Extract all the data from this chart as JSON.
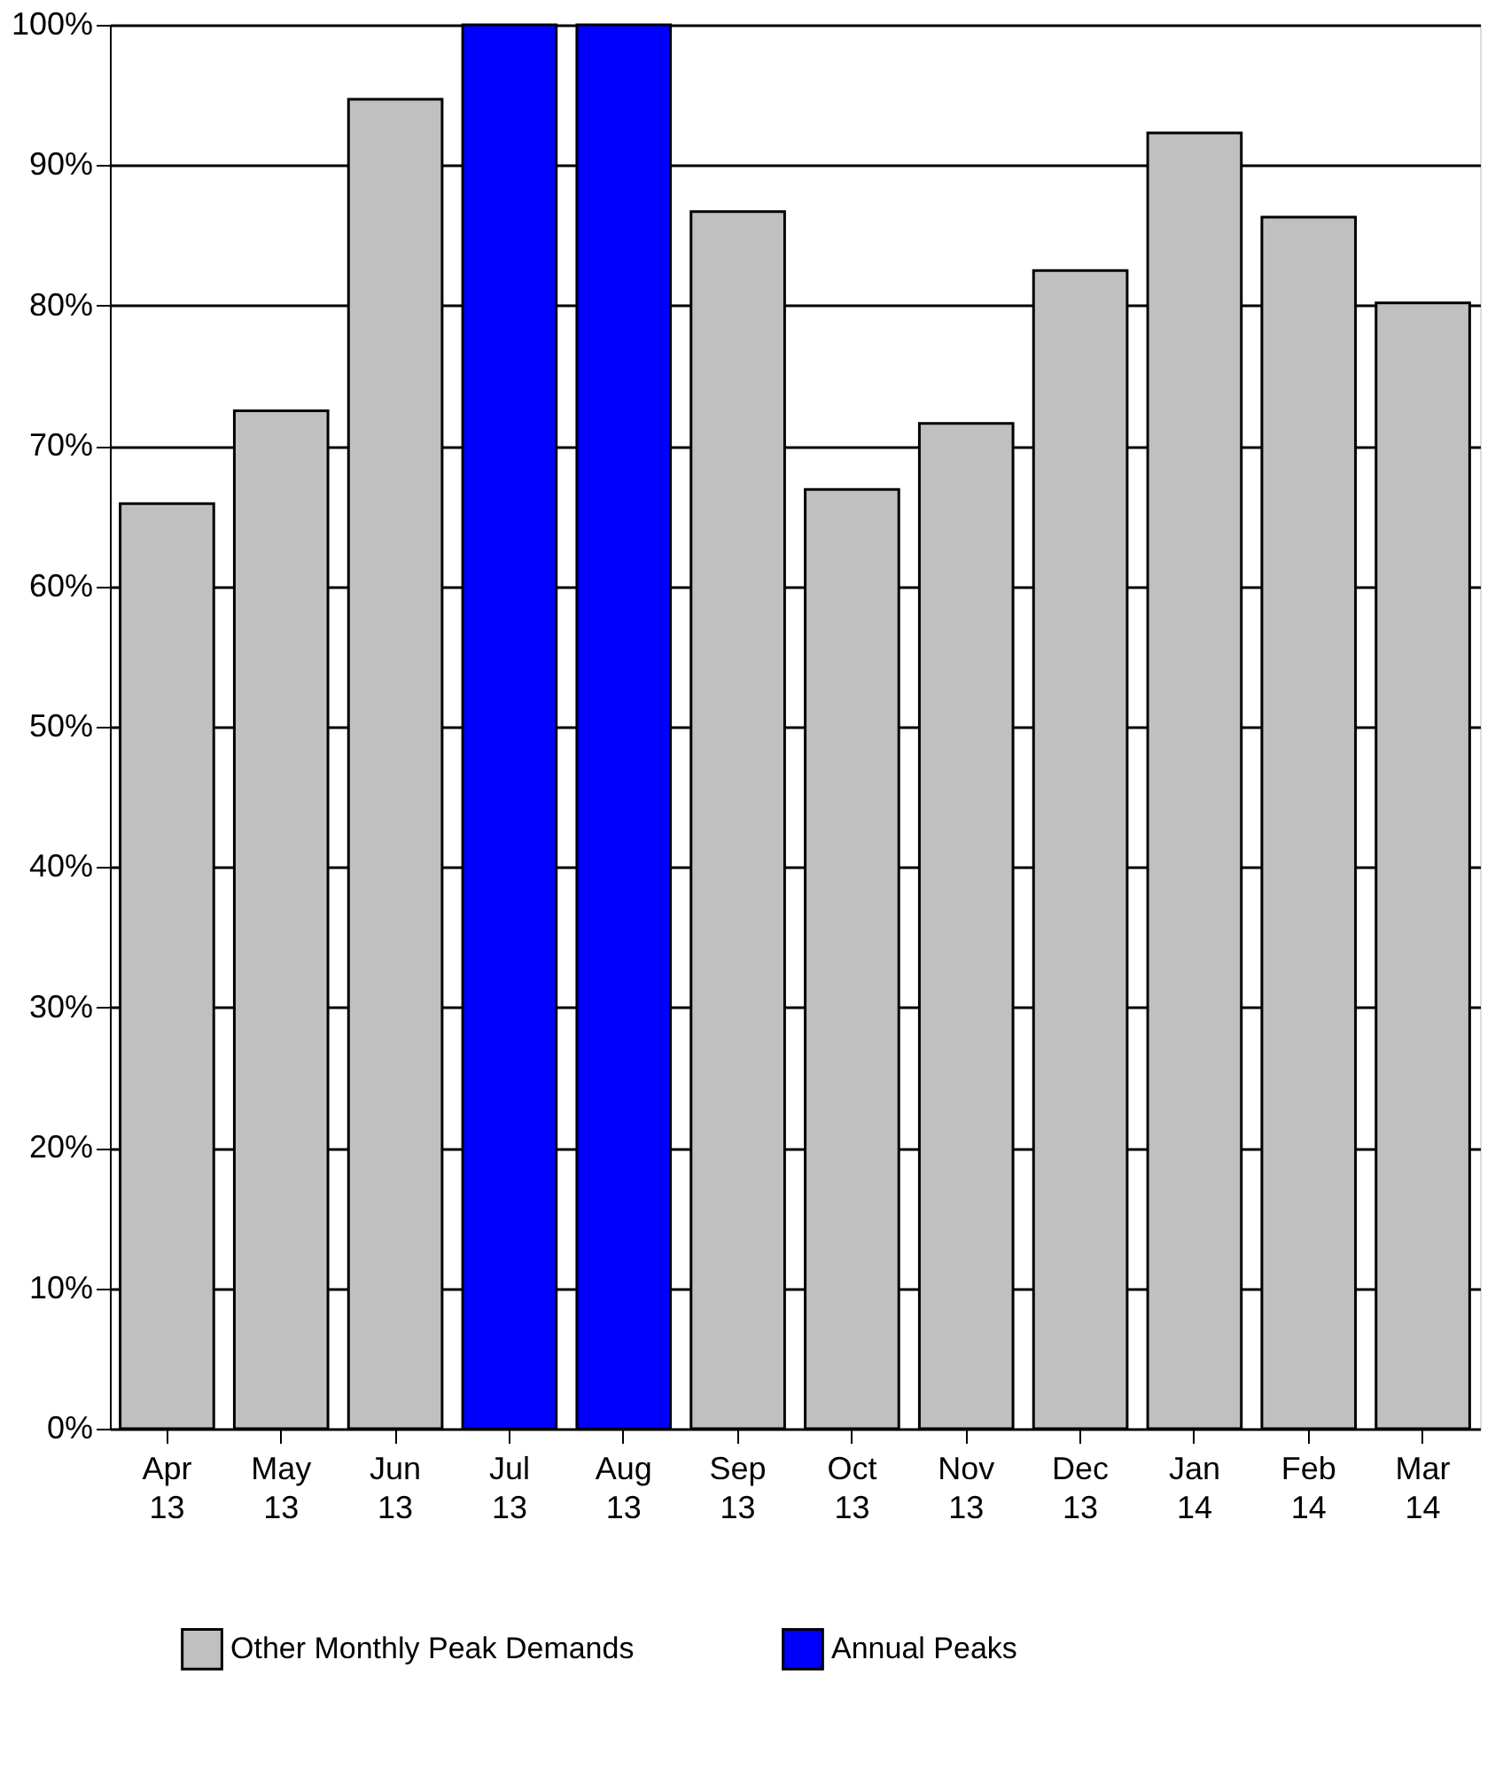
{
  "chart_data": {
    "type": "bar",
    "categories": [
      "Apr 13",
      "May 13",
      "Jun 13",
      "Jul 13",
      "Aug 13",
      "Sep 13",
      "Oct 13",
      "Nov 13",
      "Dec 13",
      "Jan 14",
      "Feb 14",
      "Mar 14"
    ],
    "series": [
      {
        "name": "Other Monthly Peak Demands",
        "color": "#c0c0c0",
        "values": [
          65.9,
          72.5,
          94.7,
          null,
          null,
          86.7,
          66.9,
          71.6,
          82.5,
          92.3,
          86.3,
          80.2
        ]
      },
      {
        "name": "Annual Peaks",
        "color": "#0000ff",
        "values": [
          null,
          null,
          null,
          100,
          100,
          null,
          null,
          null,
          null,
          null,
          null,
          null
        ]
      }
    ],
    "ylim": [
      0,
      100
    ],
    "yticks": [
      {
        "value": 0,
        "label": "0%"
      },
      {
        "value": 10,
        "label": "10%"
      },
      {
        "value": 20,
        "label": "20%"
      },
      {
        "value": 30,
        "label": "30%"
      },
      {
        "value": 40,
        "label": "40%"
      },
      {
        "value": 50,
        "label": "50%"
      },
      {
        "value": 60,
        "label": "60%"
      },
      {
        "value": 70,
        "label": "70%"
      },
      {
        "value": 80,
        "label": "80%"
      },
      {
        "value": 90,
        "label": "90%"
      },
      {
        "value": 100,
        "label": "100%"
      }
    ],
    "grid": "y",
    "legend": "bottom"
  }
}
